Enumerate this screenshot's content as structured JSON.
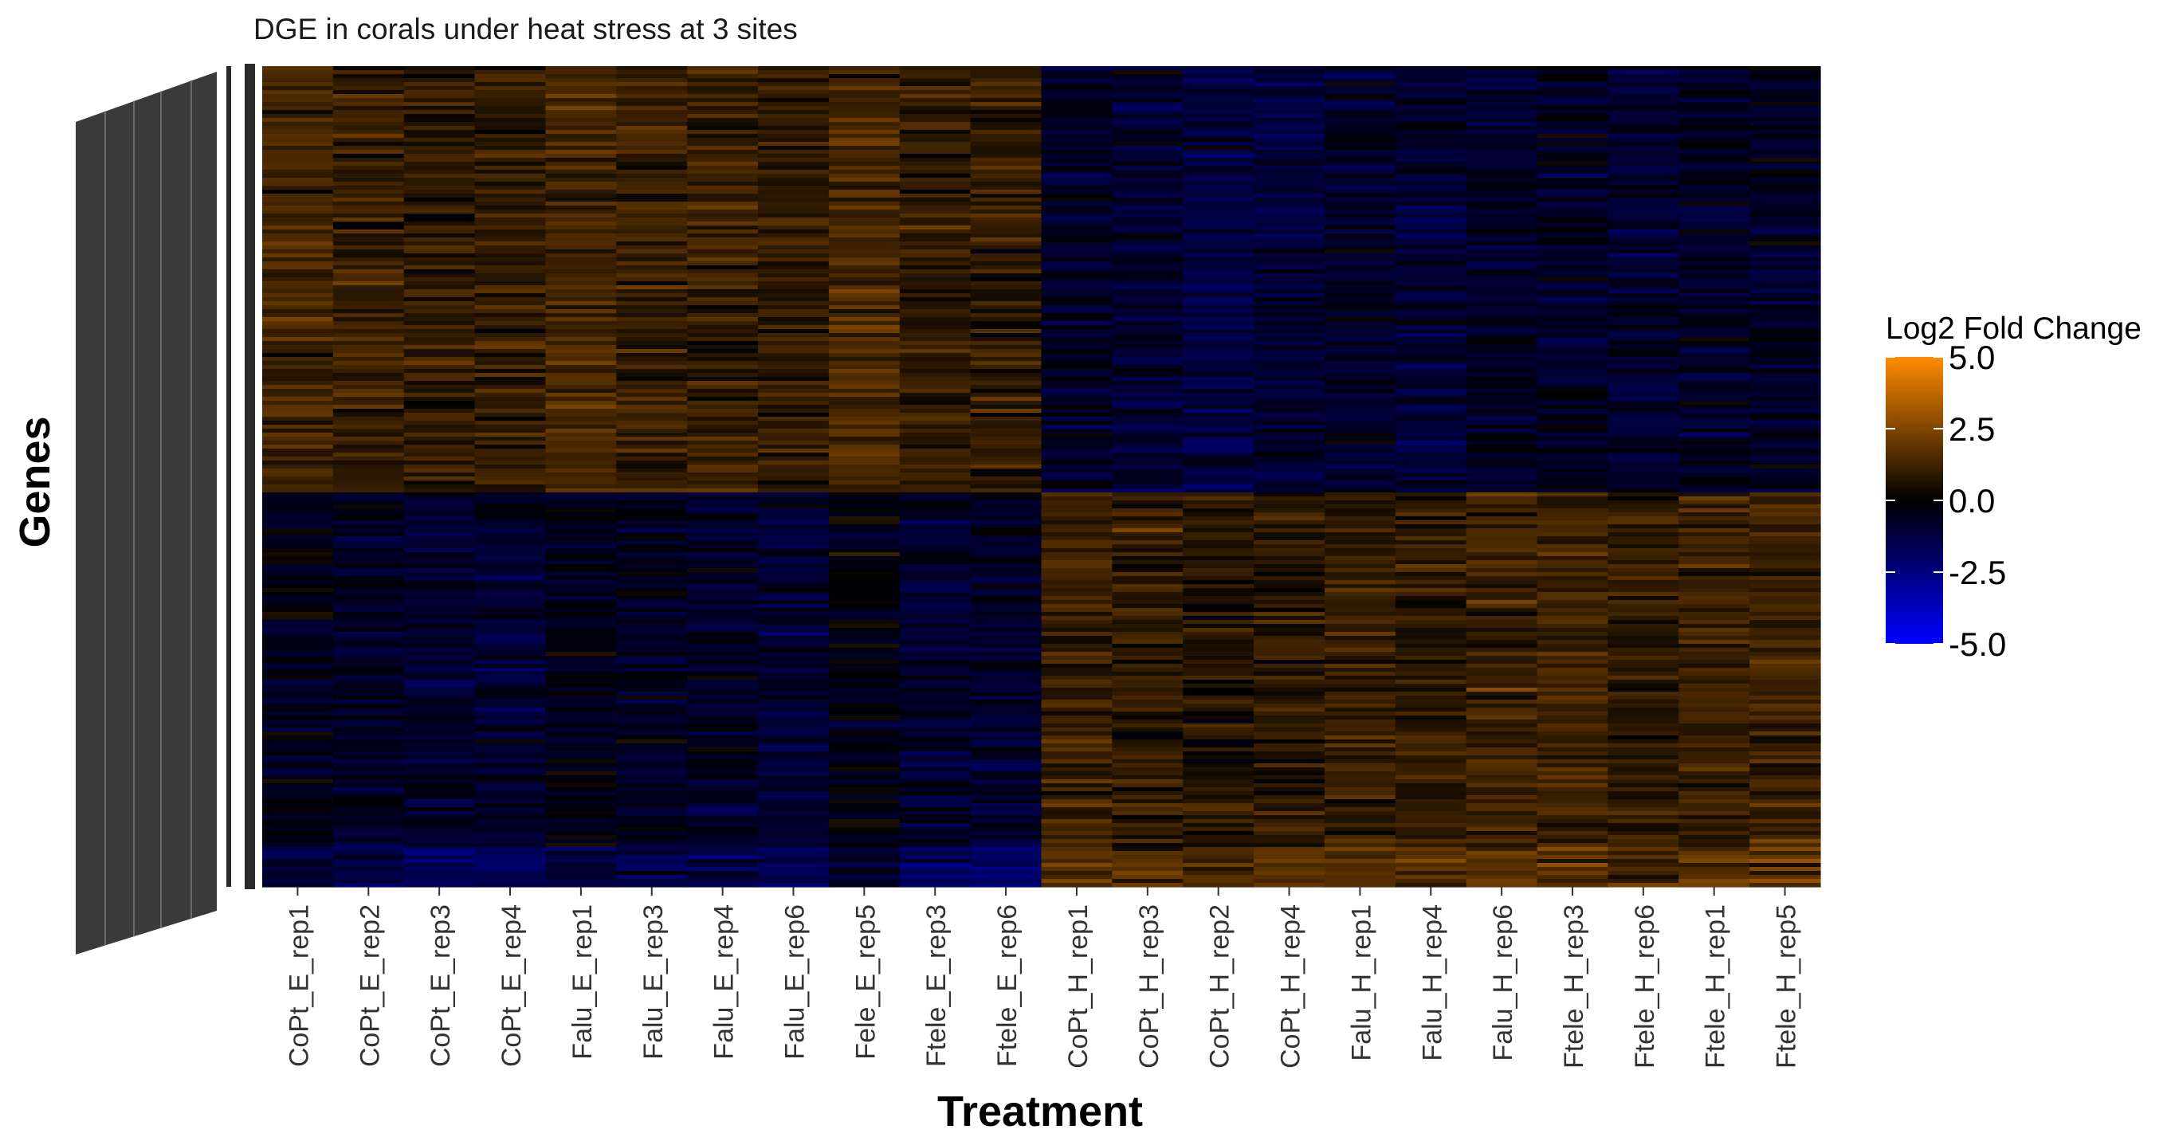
{
  "chart_data": {
    "type": "heatmap",
    "title": "DGE in corals under heat stress at 3 sites",
    "xlabel": "Treatment",
    "ylabel": "Genes",
    "categories": [
      "CoPt_E_rep1",
      "CoPt_E_rep2",
      "CoPt_E_rep3",
      "CoPt_E_rep4",
      "Falu_E_rep1",
      "Falu_E_rep3",
      "Falu_E_rep4",
      "Falu_E_rep6",
      "Fele_E_rep5",
      "Ftele_E_rep3",
      "Ftele_E_rep6",
      "CoPt_H_rep1",
      "CoPt_H_rep3",
      "CoPt_H_rep2",
      "CoPt_H_rep4",
      "Falu_H_rep1",
      "Falu_H_rep4",
      "Falu_H_rep6",
      "Ftele_H_rep3",
      "Ftele_H_rep6",
      "Ftele_H_rep1",
      "Ftele_H_rep5"
    ],
    "legend": {
      "title": "Log2 Fold Change",
      "ticks": [
        "5.0",
        "2.5",
        "0.0",
        "-2.5",
        "-5.0"
      ],
      "range": [
        -5,
        5
      ],
      "colors": {
        "low": "#0000ff",
        "mid": "#000000",
        "high": "#ff8c00"
      },
      "placement": "right"
    },
    "gene_blocks": [
      {
        "name": "block-1",
        "row_fraction": 0.52,
        "E_mean": 1.6,
        "H_mean": -1.4
      },
      {
        "name": "block-2",
        "row_fraction": 0.43,
        "E_mean": -1.1,
        "H_mean": 1.5
      },
      {
        "name": "block-3",
        "row_fraction": 0.05,
        "E_mean": -2.4,
        "H_mean": 2.5
      }
    ],
    "grid": false
  },
  "colors": {
    "background": "#ffffff",
    "dendrogram": "#3a3a3a",
    "tick_text": "#333333"
  }
}
